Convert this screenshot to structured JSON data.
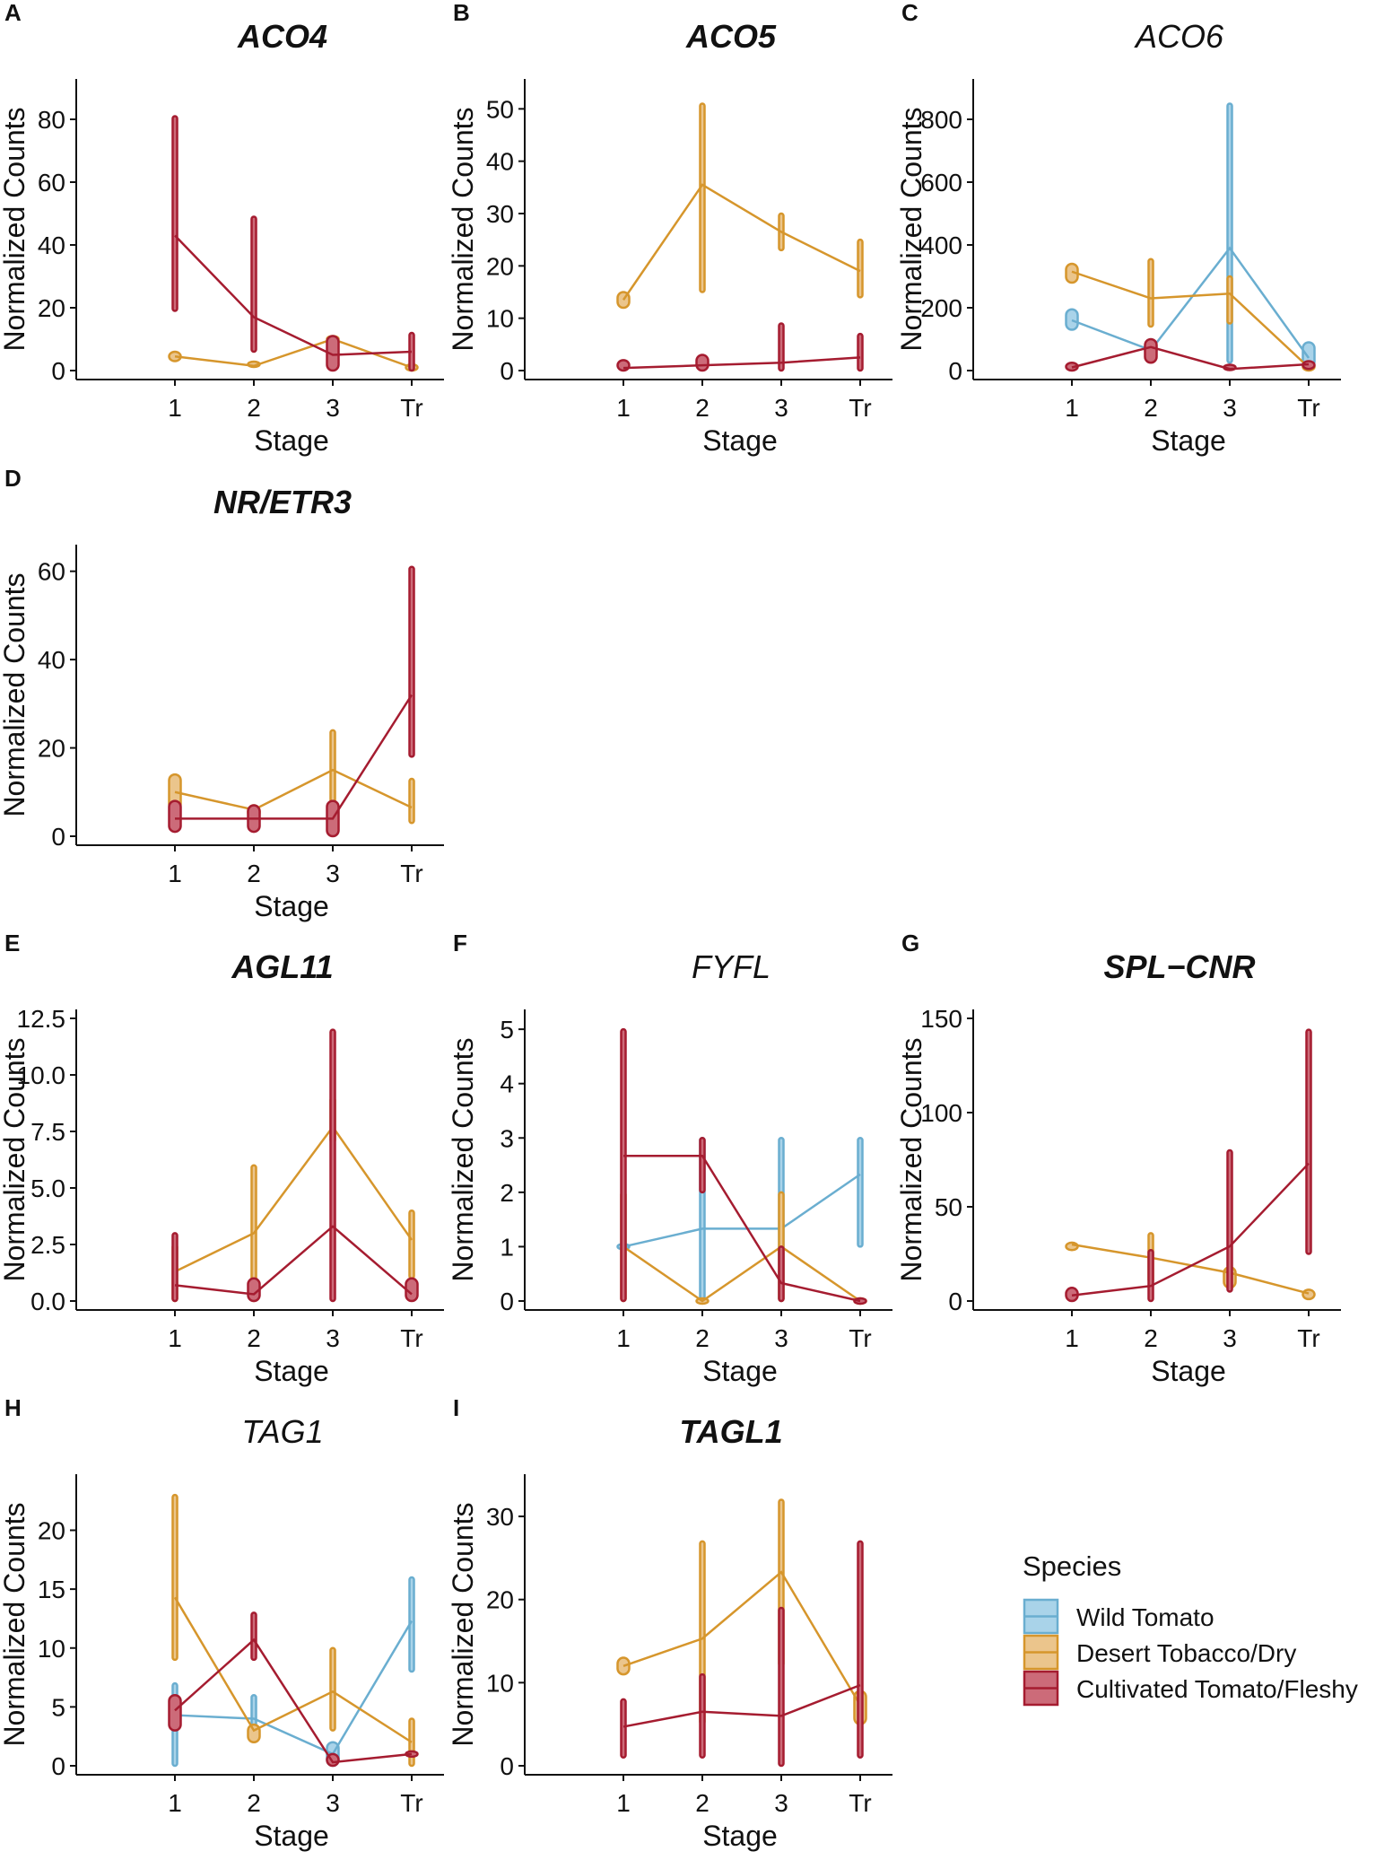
{
  "figure": {
    "xlabel": "Stage",
    "ylabel": "Normalized Counts",
    "legend": {
      "title": "Species",
      "entries": [
        {
          "key": "wild",
          "label": "Wild Tomato"
        },
        {
          "key": "desert",
          "label": "Desert Tobacco/Dry"
        },
        {
          "key": "cultivated",
          "label": "Cultivated Tomato/Fleshy"
        }
      ]
    },
    "colors": {
      "wild": {
        "line": "#6aaed0",
        "fill": "#a9d3e9"
      },
      "desert": {
        "line": "#d6962c",
        "fill": "#ebc58c"
      },
      "cultivated": {
        "line": "#a51c30",
        "fill": "#cc6b79"
      }
    }
  },
  "chart_data": [
    {
      "panel": "A",
      "title": "ACO4",
      "title_bold": true,
      "type": "violin-line",
      "categories": [
        "1",
        "2",
        "3",
        "Tr"
      ],
      "ylim": [
        0,
        90
      ],
      "yticks": [
        "0",
        "20",
        "40",
        "60",
        "80"
      ],
      "ytick_values": [
        0,
        20,
        40,
        60,
        80
      ],
      "series": [
        {
          "name": "Desert Tobacco/Dry",
          "key": "desert",
          "means": [
            4.5,
            1.5,
            10,
            1
          ],
          "ranges": [
            [
              3,
              6
            ],
            [
              1,
              2
            ],
            [
              9,
              11
            ],
            [
              0,
              2
            ]
          ]
        },
        {
          "name": "Cultivated Tomato/Fleshy",
          "key": "cultivated",
          "means": [
            43,
            17,
            5,
            6
          ],
          "ranges": [
            [
              19,
              81
            ],
            [
              6,
              49
            ],
            [
              0,
              11
            ],
            [
              0,
              12
            ]
          ]
        }
      ]
    },
    {
      "panel": "B",
      "title": "ACO5",
      "title_bold": true,
      "type": "violin-line",
      "categories": [
        "1",
        "2",
        "3",
        "Tr"
      ],
      "ylim": [
        0,
        54
      ],
      "yticks": [
        "0",
        "10",
        "20",
        "30",
        "40",
        "50"
      ],
      "ytick_values": [
        0,
        10,
        20,
        30,
        40,
        50
      ],
      "series": [
        {
          "name": "Desert Tobacco/Dry",
          "key": "desert",
          "means": [
            13.5,
            35.5,
            26.5,
            19
          ],
          "ranges": [
            [
              12,
              15
            ],
            [
              15,
              51
            ],
            [
              23,
              30
            ],
            [
              14,
              25
            ]
          ]
        },
        {
          "name": "Cultivated Tomato/Fleshy",
          "key": "cultivated",
          "means": [
            0.5,
            1,
            1.5,
            2.5
          ],
          "ranges": [
            [
              0,
              2
            ],
            [
              0,
              3
            ],
            [
              0,
              9
            ],
            [
              0,
              7
            ]
          ]
        }
      ]
    },
    {
      "panel": "C",
      "title": "ACO6",
      "title_bold": false,
      "type": "violin-line",
      "categories": [
        "1",
        "2",
        "3",
        "Tr"
      ],
      "ylim": [
        0,
        900
      ],
      "yticks": [
        "0",
        "200",
        "400",
        "600",
        "800"
      ],
      "ytick_values": [
        0,
        200,
        400,
        600,
        800
      ],
      "series": [
        {
          "name": "Wild Tomato",
          "key": "wild",
          "means": [
            160,
            65,
            390,
            40
          ],
          "ranges": [
            [
              130,
              195
            ],
            [
              50,
              80
            ],
            [
              25,
              850
            ],
            [
              10,
              90
            ]
          ]
        },
        {
          "name": "Desert Tobacco/Dry",
          "key": "desert",
          "means": [
            315,
            230,
            245,
            10
          ],
          "ranges": [
            [
              280,
              340
            ],
            [
              140,
              355
            ],
            [
              150,
              300
            ],
            [
              0,
              25
            ]
          ]
        },
        {
          "name": "Cultivated Tomato/Fleshy",
          "key": "cultivated",
          "means": [
            10,
            75,
            5,
            20
          ],
          "ranges": [
            [
              0,
              25
            ],
            [
              25,
              100
            ],
            [
              0,
              10
            ],
            [
              5,
              30
            ]
          ]
        }
      ]
    },
    {
      "panel": "D",
      "title": "NR/ETR3",
      "title_bold": true,
      "type": "violin-line",
      "categories": [
        "1",
        "2",
        "3",
        "Tr"
      ],
      "ylim": [
        0,
        64
      ],
      "yticks": [
        "0",
        "20",
        "40",
        "60"
      ],
      "ytick_values": [
        0,
        20,
        40,
        60
      ],
      "series": [
        {
          "name": "Desert Tobacco/Dry",
          "key": "desert",
          "means": [
            10,
            6,
            15,
            6.5
          ],
          "ranges": [
            [
              6,
              14
            ],
            [
              4,
              7
            ],
            [
              7,
              24
            ],
            [
              3,
              13
            ]
          ]
        },
        {
          "name": "Cultivated Tomato/Fleshy",
          "key": "cultivated",
          "means": [
            4,
            4,
            4,
            32
          ],
          "ranges": [
            [
              1,
              8
            ],
            [
              1,
              7
            ],
            [
              0,
              8
            ],
            [
              18,
              61
            ]
          ]
        }
      ]
    },
    {
      "panel": "E",
      "title": "AGL11",
      "title_bold": true,
      "type": "violin-line",
      "categories": [
        "1",
        "2",
        "3",
        "Tr"
      ],
      "ylim": [
        0,
        12.5
      ],
      "yticks": [
        "0.0",
        "2.5",
        "5.0",
        "7.5",
        "10.0",
        "12.5"
      ],
      "ytick_values": [
        0,
        2.5,
        5,
        7.5,
        10,
        12.5
      ],
      "series": [
        {
          "name": "Desert Tobacco/Dry",
          "key": "desert",
          "means": [
            1.3,
            3,
            7.7,
            2.7
          ],
          "ranges": [
            [
              0,
              2.5
            ],
            [
              0,
              6
            ],
            [
              7,
              9
            ],
            [
              1,
              4
            ]
          ]
        },
        {
          "name": "Cultivated Tomato/Fleshy",
          "key": "cultivated",
          "means": [
            0.7,
            0.3,
            3.3,
            0.3
          ],
          "ranges": [
            [
              0,
              3
            ],
            [
              0,
              1
            ],
            [
              0,
              12
            ],
            [
              0,
              1
            ]
          ]
        }
      ]
    },
    {
      "panel": "F",
      "title": "FYFL",
      "title_bold": false,
      "type": "violin-line",
      "categories": [
        "1",
        "2",
        "3",
        "Tr"
      ],
      "ylim": [
        0,
        5.2
      ],
      "yticks": [
        "0",
        "1",
        "2",
        "3",
        "4",
        "5"
      ],
      "ytick_values": [
        0,
        1,
        2,
        3,
        4,
        5
      ],
      "series": [
        {
          "name": "Wild Tomato",
          "key": "wild",
          "means": [
            1,
            1.33,
            1.33,
            2.33
          ],
          "ranges": [
            [
              1,
              1
            ],
            [
              0,
              3
            ],
            [
              0,
              3
            ],
            [
              1,
              3
            ]
          ]
        },
        {
          "name": "Desert Tobacco/Dry",
          "key": "desert",
          "means": [
            1,
            0,
            1,
            0
          ],
          "ranges": [
            [
              0,
              2
            ],
            [
              0,
              0
            ],
            [
              0,
              2
            ],
            [
              0,
              0
            ]
          ]
        },
        {
          "name": "Cultivated Tomato/Fleshy",
          "key": "cultivated",
          "means": [
            2.67,
            2.67,
            0.33,
            0
          ],
          "ranges": [
            [
              0,
              5
            ],
            [
              2,
              3
            ],
            [
              0,
              1
            ],
            [
              0,
              0
            ]
          ]
        }
      ]
    },
    {
      "panel": "G",
      "title": "SPL−CNR",
      "title_bold": true,
      "type": "violin-line",
      "categories": [
        "1",
        "2",
        "3",
        "Tr"
      ],
      "ylim": [
        0,
        150
      ],
      "yticks": [
        "0",
        "50",
        "100",
        "150"
      ],
      "ytick_values": [
        0,
        50,
        100,
        150
      ],
      "series": [
        {
          "name": "Desert Tobacco/Dry",
          "key": "desert",
          "means": [
            30,
            23,
            15,
            4
          ],
          "ranges": [
            [
              27,
              31
            ],
            [
              10,
              36
            ],
            [
              7,
              18
            ],
            [
              1,
              6
            ]
          ]
        },
        {
          "name": "Cultivated Tomato/Fleshy",
          "key": "cultivated",
          "means": [
            3,
            8,
            29,
            73
          ],
          "ranges": [
            [
              0,
              7
            ],
            [
              0,
              27
            ],
            [
              5,
              80
            ],
            [
              25,
              144
            ]
          ]
        }
      ]
    },
    {
      "panel": "H",
      "title": "TAG1",
      "title_bold": false,
      "type": "violin-line",
      "categories": [
        "1",
        "2",
        "3",
        "Tr"
      ],
      "ylim": [
        0,
        24
      ],
      "yticks": [
        "0",
        "5",
        "10",
        "15",
        "20"
      ],
      "ytick_values": [
        0,
        5,
        10,
        15,
        20
      ],
      "series": [
        {
          "name": "Wild Tomato",
          "key": "wild",
          "means": [
            4.3,
            4,
            1,
            12.3
          ],
          "ranges": [
            [
              0,
              7
            ],
            [
              2,
              6
            ],
            [
              0,
              2
            ],
            [
              8,
              16
            ]
          ]
        },
        {
          "name": "Desert Tobacco/Dry",
          "key": "desert",
          "means": [
            14.3,
            3,
            6.3,
            2
          ],
          "ranges": [
            [
              9,
              23
            ],
            [
              2,
              3.5
            ],
            [
              3,
              10
            ],
            [
              0,
              4
            ]
          ]
        },
        {
          "name": "Cultivated Tomato/Fleshy",
          "key": "cultivated",
          "means": [
            4.7,
            10.7,
            0.3,
            1
          ],
          "ranges": [
            [
              3,
              6
            ],
            [
              9,
              13
            ],
            [
              0,
              1
            ],
            [
              1,
              1
            ]
          ]
        }
      ]
    },
    {
      "panel": "I",
      "title": "TAGL1",
      "title_bold": true,
      "type": "violin-line",
      "categories": [
        "1",
        "2",
        "3",
        "Tr"
      ],
      "ylim": [
        0,
        34
      ],
      "yticks": [
        "0",
        "10",
        "20",
        "30"
      ],
      "ytick_values": [
        0,
        10,
        20,
        30
      ],
      "series": [
        {
          "name": "Desert Tobacco/Dry",
          "key": "desert",
          "means": [
            12,
            15.3,
            23.3,
            7.3
          ],
          "ranges": [
            [
              11,
              13
            ],
            [
              5,
              27
            ],
            [
              12,
              32
            ],
            [
              5,
              9
            ]
          ]
        },
        {
          "name": "Cultivated Tomato/Fleshy",
          "key": "cultivated",
          "means": [
            4.7,
            6.5,
            6,
            9.7
          ],
          "ranges": [
            [
              1,
              8
            ],
            [
              1,
              11
            ],
            [
              0,
              19
            ],
            [
              1,
              27
            ]
          ]
        }
      ]
    }
  ]
}
